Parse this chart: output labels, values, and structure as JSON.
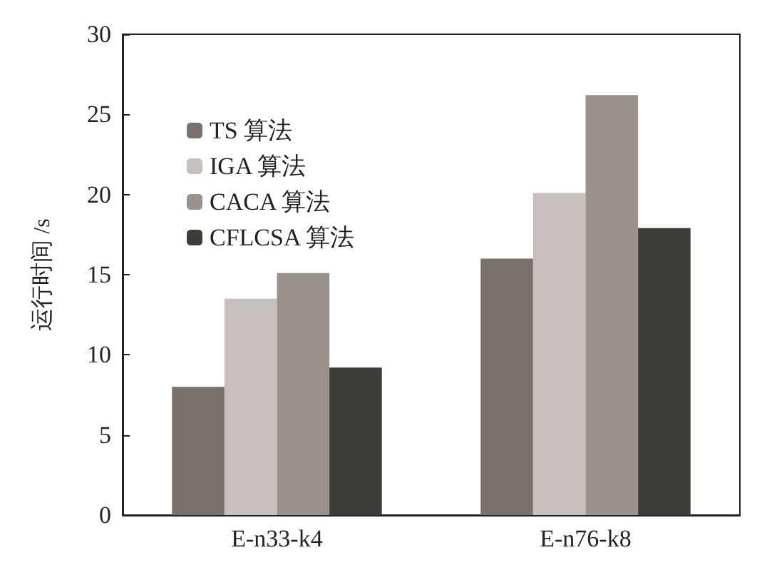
{
  "chart_data": {
    "type": "bar",
    "ylabel": "运行时间 /s",
    "categories": [
      "E-n33-k4",
      "E-n76-k8"
    ],
    "series": [
      {
        "name": "TS 算法",
        "color": "#7a716c",
        "values": [
          8.0,
          16.0
        ]
      },
      {
        "name": "IGA 算法",
        "color": "#c7bfbb",
        "values": [
          13.5,
          20.1
        ]
      },
      {
        "name": "CACA 算法",
        "color": "#9b918d",
        "values": [
          15.1,
          26.2
        ]
      },
      {
        "name": "CFLCSA 算法",
        "color": "#3f3d3a",
        "values": [
          9.2,
          17.9
        ]
      }
    ],
    "ylim": [
      0,
      30
    ],
    "yticks": [
      0,
      5,
      10,
      15,
      20,
      25,
      30
    ],
    "legend": "top left",
    "grid": false
  }
}
